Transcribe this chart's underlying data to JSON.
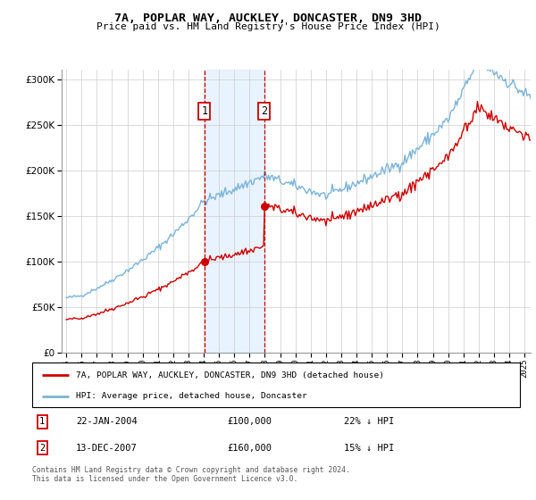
{
  "title": "7A, POPLAR WAY, AUCKLEY, DONCASTER, DN9 3HD",
  "subtitle": "Price paid vs. HM Land Registry's House Price Index (HPI)",
  "legend_line1": "7A, POPLAR WAY, AUCKLEY, DONCASTER, DN9 3HD (detached house)",
  "legend_line2": "HPI: Average price, detached house, Doncaster",
  "sale1_date": "22-JAN-2004",
  "sale1_price": "£100,000",
  "sale1_hpi": "22% ↓ HPI",
  "sale2_date": "13-DEC-2007",
  "sale2_price": "£160,000",
  "sale2_hpi": "15% ↓ HPI",
  "footer": "Contains HM Land Registry data © Crown copyright and database right 2024.\nThis data is licensed under the Open Government Licence v3.0.",
  "sale1_x": 2004.055,
  "sale1_y": 100000,
  "sale2_x": 2007.956,
  "sale2_y": 160000,
  "hpi_color": "#7ab4d8",
  "price_color": "#cc0000",
  "shade_color": "#ddeeff",
  "ylim": [
    0,
    310000
  ],
  "xlim_start": 1994.7,
  "xlim_end": 2025.4,
  "yticks": [
    0,
    50000,
    100000,
    150000,
    200000,
    250000,
    300000
  ]
}
